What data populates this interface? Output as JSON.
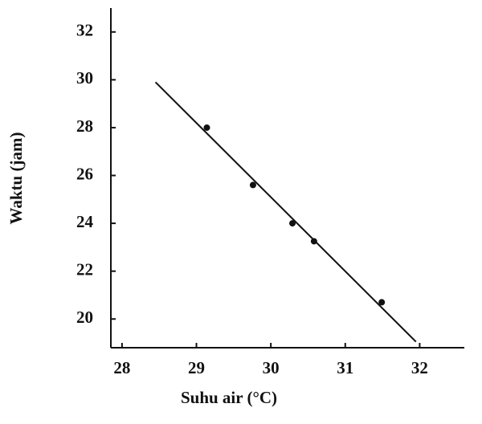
{
  "chart_data": {
    "type": "scatter",
    "xlabel": "Suhu air (°C)",
    "ylabel": "Waktu (jam)",
    "x": [
      29.14,
      29.76,
      30.29,
      30.58,
      31.49
    ],
    "y": [
      28.0,
      25.6,
      24.0,
      23.25,
      20.7
    ],
    "color": "#111111",
    "trend_line": {
      "x": [
        28.45,
        31.95
      ],
      "y": [
        29.9,
        19.05
      ]
    },
    "xlim": [
      27.85,
      32.6
    ],
    "ylim": [
      18.8,
      33
    ],
    "xticks": [
      28,
      29,
      30,
      31,
      32
    ],
    "yticks": [
      20,
      22,
      24,
      26,
      28,
      30,
      32
    ]
  }
}
